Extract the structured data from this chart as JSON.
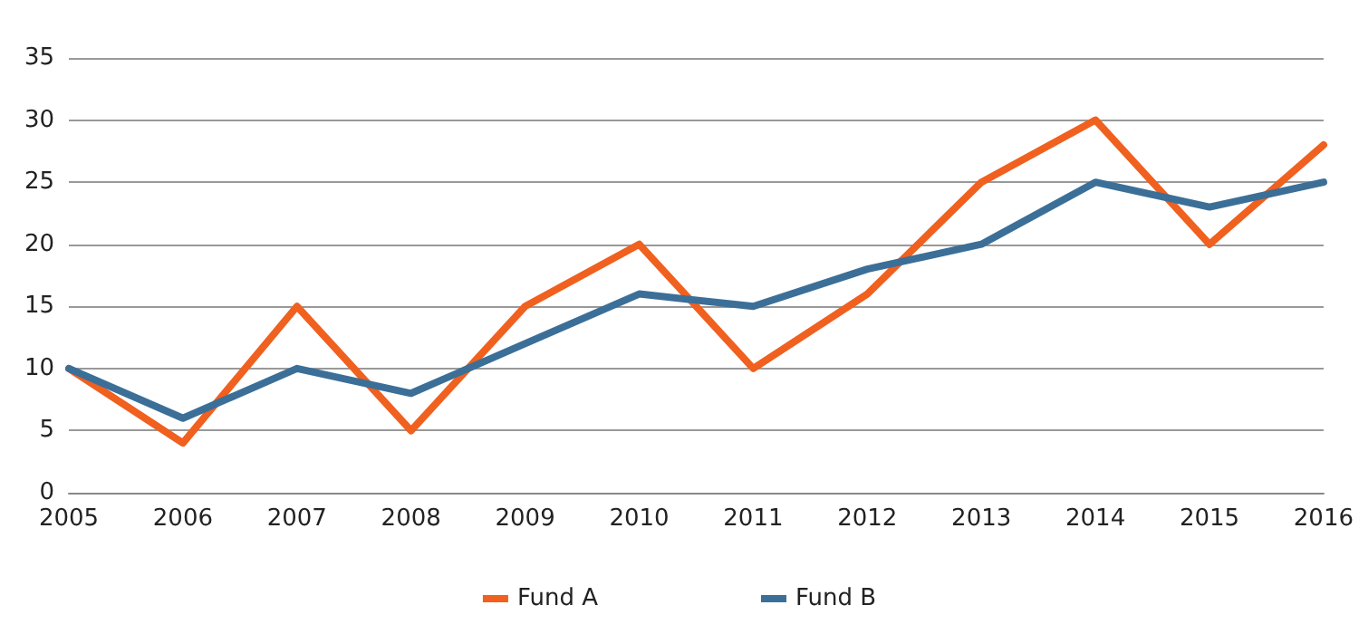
{
  "chart_data": {
    "type": "line",
    "categories": [
      "2005",
      "2006",
      "2007",
      "2008",
      "2009",
      "2010",
      "2011",
      "2012",
      "2013",
      "2014",
      "2015",
      "2016"
    ],
    "series": [
      {
        "name": "Fund A",
        "color": "#f0601f",
        "values": [
          10,
          4,
          15,
          5,
          15,
          20,
          10,
          16,
          25,
          30,
          20,
          28
        ]
      },
      {
        "name": "Fund B",
        "color": "#3b6f98",
        "values": [
          10,
          6,
          10,
          8,
          12,
          16,
          15,
          18,
          20,
          25,
          23,
          25
        ]
      }
    ],
    "ylim": [
      0,
      35
    ],
    "yticks": [
      0,
      5,
      10,
      15,
      20,
      25,
      30,
      35
    ],
    "grid": "y",
    "legend": "bottom",
    "marker": "none",
    "line_style": "solid"
  }
}
